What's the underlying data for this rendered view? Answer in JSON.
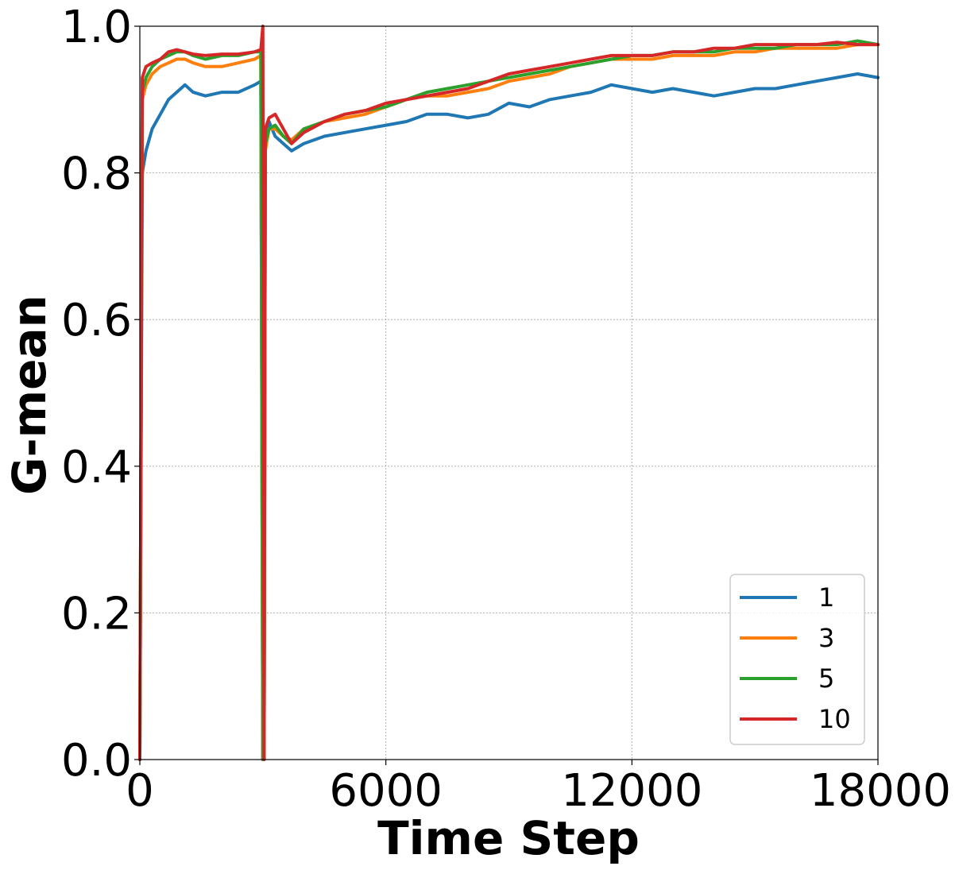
{
  "chart_data": {
    "type": "line",
    "xlabel": "Time Step",
    "ylabel": "G-mean",
    "xlim": [
      0,
      18000
    ],
    "ylim": [
      0.0,
      1.0
    ],
    "xticks": [
      0,
      6000,
      12000,
      18000
    ],
    "xtick_labels": [
      "0",
      "6000",
      "12000",
      "18000"
    ],
    "yticks": [
      0.0,
      0.2,
      0.4,
      0.6,
      0.8,
      1.0
    ],
    "ytick_labels": [
      "0.0",
      "0.2",
      "0.4",
      "0.6",
      "0.8",
      "1.0"
    ],
    "grid": true,
    "legend_position": "lower-right",
    "series": [
      {
        "name": "1",
        "color": "#1f77b4",
        "x": [
          0,
          60,
          150,
          300,
          500,
          700,
          900,
          1100,
          1300,
          1600,
          2000,
          2400,
          2800,
          2950,
          3000,
          3030,
          3060,
          3150,
          3300,
          3500,
          3700,
          4000,
          4500,
          5000,
          5500,
          6000,
          6500,
          7000,
          7500,
          8000,
          8500,
          9000,
          9500,
          10000,
          10500,
          11000,
          11500,
          12000,
          12500,
          13000,
          13500,
          14000,
          14500,
          15000,
          15500,
          16000,
          16500,
          17000,
          17500,
          18000
        ],
        "values": [
          0.0,
          0.8,
          0.83,
          0.86,
          0.88,
          0.9,
          0.91,
          0.92,
          0.91,
          0.905,
          0.91,
          0.91,
          0.92,
          0.925,
          0.0,
          0.0,
          0.85,
          0.87,
          0.85,
          0.84,
          0.83,
          0.84,
          0.85,
          0.855,
          0.86,
          0.865,
          0.87,
          0.88,
          0.88,
          0.875,
          0.88,
          0.895,
          0.89,
          0.9,
          0.905,
          0.91,
          0.92,
          0.915,
          0.91,
          0.915,
          0.91,
          0.905,
          0.91,
          0.915,
          0.915,
          0.92,
          0.925,
          0.93,
          0.935,
          0.93
        ]
      },
      {
        "name": "3",
        "color": "#ff7f0e",
        "x": [
          0,
          60,
          150,
          300,
          500,
          700,
          900,
          1100,
          1300,
          1600,
          2000,
          2400,
          2800,
          2950,
          3000,
          3030,
          3060,
          3150,
          3300,
          3500,
          3700,
          4000,
          4500,
          5000,
          5500,
          6000,
          6500,
          7000,
          7500,
          8000,
          8500,
          9000,
          9500,
          10000,
          10500,
          11000,
          11500,
          12000,
          12500,
          13000,
          13500,
          14000,
          14500,
          15000,
          15500,
          16000,
          16500,
          17000,
          17500,
          18000
        ],
        "values": [
          0.0,
          0.9,
          0.92,
          0.935,
          0.945,
          0.95,
          0.955,
          0.955,
          0.95,
          0.945,
          0.945,
          0.95,
          0.955,
          0.96,
          0.0,
          0.0,
          0.83,
          0.86,
          0.86,
          0.85,
          0.845,
          0.86,
          0.87,
          0.875,
          0.88,
          0.89,
          0.9,
          0.905,
          0.905,
          0.91,
          0.915,
          0.925,
          0.93,
          0.935,
          0.945,
          0.95,
          0.955,
          0.955,
          0.955,
          0.96,
          0.96,
          0.96,
          0.965,
          0.965,
          0.97,
          0.97,
          0.97,
          0.97,
          0.975,
          0.975
        ]
      },
      {
        "name": "5",
        "color": "#2ca02c",
        "x": [
          0,
          60,
          150,
          300,
          500,
          700,
          900,
          1100,
          1300,
          1600,
          2000,
          2400,
          2800,
          2950,
          3000,
          3030,
          3060,
          3150,
          3300,
          3500,
          3700,
          4000,
          4500,
          5000,
          5500,
          6000,
          6500,
          7000,
          7500,
          8000,
          8500,
          9000,
          9500,
          10000,
          10500,
          11000,
          11500,
          12000,
          12500,
          13000,
          13500,
          14000,
          14500,
          15000,
          15500,
          16000,
          16500,
          17000,
          17500,
          18000
        ],
        "values": [
          0.0,
          0.91,
          0.93,
          0.945,
          0.955,
          0.96,
          0.965,
          0.965,
          0.96,
          0.955,
          0.96,
          0.96,
          0.965,
          0.965,
          0.0,
          0.0,
          0.84,
          0.86,
          0.865,
          0.85,
          0.84,
          0.86,
          0.87,
          0.88,
          0.885,
          0.89,
          0.9,
          0.91,
          0.915,
          0.92,
          0.925,
          0.93,
          0.935,
          0.94,
          0.945,
          0.95,
          0.955,
          0.96,
          0.96,
          0.965,
          0.965,
          0.965,
          0.97,
          0.97,
          0.97,
          0.975,
          0.975,
          0.975,
          0.98,
          0.975
        ]
      },
      {
        "name": "10",
        "color": "#d62728",
        "x": [
          0,
          60,
          150,
          300,
          500,
          700,
          900,
          1100,
          1300,
          1600,
          2000,
          2400,
          2800,
          2950,
          3000,
          3030,
          3060,
          3150,
          3300,
          3500,
          3700,
          4000,
          4500,
          5000,
          5500,
          6000,
          6500,
          7000,
          7500,
          8000,
          8500,
          9000,
          9500,
          10000,
          10500,
          11000,
          11500,
          12000,
          12500,
          13000,
          13500,
          14000,
          14500,
          15000,
          15500,
          16000,
          16500,
          17000,
          17500,
          18000
        ],
        "values": [
          0.0,
          0.93,
          0.945,
          0.95,
          0.955,
          0.965,
          0.968,
          0.965,
          0.962,
          0.96,
          0.962,
          0.962,
          0.965,
          0.968,
          1.0,
          0.0,
          0.86,
          0.875,
          0.88,
          0.86,
          0.84,
          0.855,
          0.87,
          0.88,
          0.885,
          0.895,
          0.9,
          0.905,
          0.91,
          0.915,
          0.925,
          0.935,
          0.94,
          0.945,
          0.95,
          0.955,
          0.96,
          0.96,
          0.96,
          0.965,
          0.965,
          0.97,
          0.97,
          0.975,
          0.975,
          0.975,
          0.975,
          0.978,
          0.975,
          0.975
        ]
      }
    ]
  }
}
